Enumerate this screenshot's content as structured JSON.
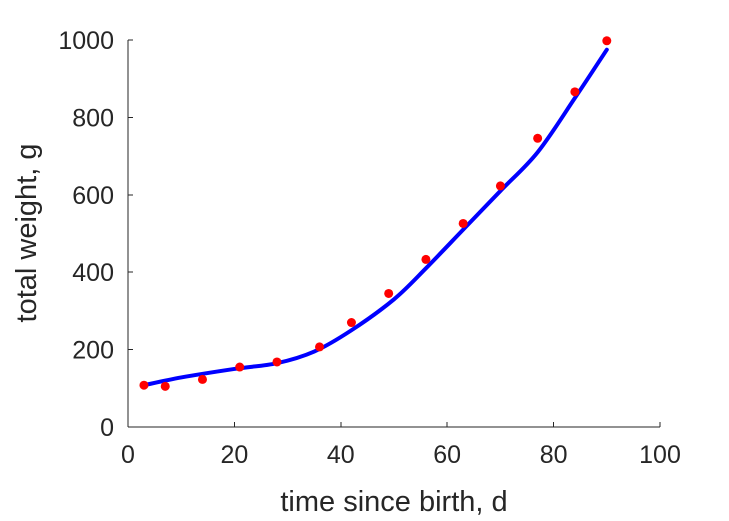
{
  "chart_data": {
    "type": "scatter",
    "title": "",
    "xlabel": "time since birth, d",
    "ylabel": "total weight, g",
    "xlim": [
      0,
      100
    ],
    "ylim": [
      0,
      1000
    ],
    "xticks": [
      0,
      20,
      40,
      60,
      80,
      100
    ],
    "yticks": [
      0,
      200,
      400,
      600,
      800,
      1000
    ],
    "grid": false,
    "legend": "none",
    "series": [
      {
        "kind": "points",
        "color": "#ff0000",
        "x": [
          3,
          7,
          14,
          21,
          28,
          36,
          42,
          49,
          56,
          63,
          70,
          77,
          84,
          90
        ],
        "y": [
          108,
          105,
          123,
          155,
          168,
          207,
          270,
          345,
          433,
          526,
          623,
          746,
          866,
          998
        ]
      },
      {
        "kind": "line",
        "color": "#0000ff",
        "x": [
          3,
          10,
          20,
          28,
          35,
          42,
          50,
          56,
          63,
          70,
          77,
          84,
          90
        ],
        "y": [
          108,
          128,
          150,
          165,
          195,
          250,
          330,
          410,
          510,
          610,
          710,
          850,
          975
        ]
      }
    ]
  }
}
